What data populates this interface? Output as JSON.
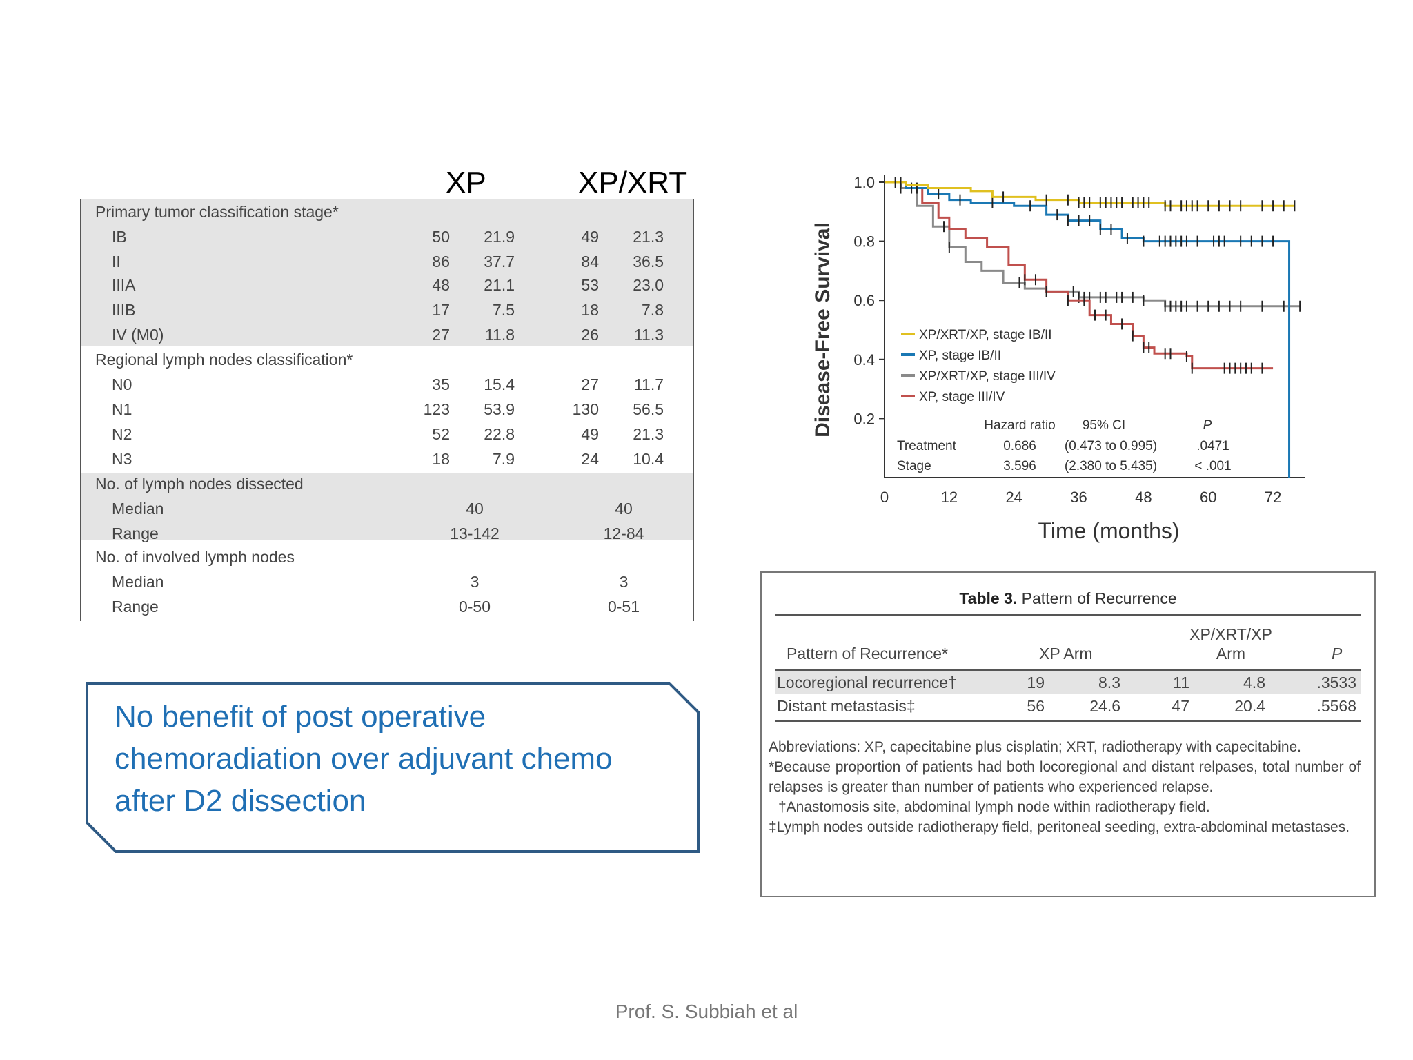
{
  "left_table": {
    "column_headers": [
      "XP",
      "XP/XRT"
    ],
    "sections": [
      {
        "title": "Primary tumor classification stage*",
        "rows": [
          {
            "label": "IB",
            "values": [
              "50",
              "21.9",
              "49",
              "21.3"
            ]
          },
          {
            "label": "II",
            "values": [
              "86",
              "37.7",
              "84",
              "36.5"
            ]
          },
          {
            "label": "IIIA",
            "values": [
              "48",
              "21.1",
              "53",
              "23.0"
            ]
          },
          {
            "label": "IIIB",
            "values": [
              "17",
              "7.5",
              "18",
              "7.8"
            ]
          },
          {
            "label": "IV (M0)",
            "values": [
              "27",
              "11.8",
              "26",
              "11.3"
            ]
          }
        ]
      },
      {
        "title": "Regional lymph nodes classification*",
        "rows": [
          {
            "label": "N0",
            "values": [
              "35",
              "15.4",
              "27",
              "11.7"
            ]
          },
          {
            "label": "N1",
            "values": [
              "123",
              "53.9",
              "130",
              "56.5"
            ]
          },
          {
            "label": "N2",
            "values": [
              "52",
              "22.8",
              "49",
              "21.3"
            ]
          },
          {
            "label": "N3",
            "values": [
              "18",
              "7.9",
              "24",
              "10.4"
            ]
          }
        ]
      },
      {
        "title": "No. of lymph nodes dissected",
        "rows": [
          {
            "label": "Median",
            "values": [
              "40",
              "40"
            ]
          },
          {
            "label": "Range",
            "values": [
              "13-142",
              "12-84"
            ]
          }
        ]
      },
      {
        "title": "No. of involved lymph nodes",
        "rows": [
          {
            "label": "Median",
            "values": [
              "3",
              "3"
            ]
          },
          {
            "label": "Range",
            "values": [
              "0-50",
              "0-51"
            ]
          }
        ]
      }
    ]
  },
  "callout": {
    "lines": [
      "No benefit of post operative",
      "chemoradiation over adjuvant chemo",
      "after D2 dissection"
    ]
  },
  "km_chart": {
    "type": "line",
    "ylabel": "Disease-Free Survival",
    "xlabel": "Time (months)",
    "x_ticks": [
      "0",
      "12",
      "24",
      "36",
      "48",
      "60",
      "72"
    ],
    "y_ticks": [
      "1.0",
      "0.8",
      "0.6",
      "0.4",
      "0.2"
    ],
    "xlim": [
      0,
      78
    ],
    "ylim": [
      0,
      1.0
    ],
    "colors": {
      "XP/XRT/XP, stage IB/II": "#e0c020",
      "XP, stage IB/II": "#1a78b4",
      "XP/XRT/XP, stage III/IV": "#8a8a8a",
      "XP, stage III/IV": "#c0504d"
    },
    "series": [
      {
        "name": "XP/XRT/XP, stage IB/II",
        "color": "#e0c020",
        "points": [
          [
            0,
            1.0
          ],
          [
            4,
            0.99
          ],
          [
            8,
            0.98
          ],
          [
            16,
            0.97
          ],
          [
            20,
            0.95
          ],
          [
            28,
            0.94
          ],
          [
            36,
            0.93
          ],
          [
            52,
            0.92
          ],
          [
            76,
            0.92
          ]
        ],
        "censor_x": [
          2,
          3,
          22,
          30,
          34,
          36,
          37,
          38,
          40,
          41,
          42,
          43,
          44,
          46,
          47,
          48,
          49,
          52,
          53,
          55,
          56,
          57,
          58,
          60,
          62,
          64,
          66,
          70,
          72,
          74,
          76
        ]
      },
      {
        "name": "XP, stage IB/II",
        "color": "#1a78b4",
        "points": [
          [
            0,
            1.0
          ],
          [
            4,
            0.98
          ],
          [
            8,
            0.96
          ],
          [
            12,
            0.94
          ],
          [
            16,
            0.93
          ],
          [
            24,
            0.92
          ],
          [
            30,
            0.89
          ],
          [
            34,
            0.87
          ],
          [
            40,
            0.84
          ],
          [
            44,
            0.81
          ],
          [
            48,
            0.8
          ],
          [
            75,
            0.8
          ],
          [
            75,
            0.0
          ]
        ],
        "censor_x": [
          3,
          5,
          6,
          10,
          14,
          20,
          27,
          32,
          34,
          36,
          38,
          40,
          42,
          45,
          48,
          51,
          52,
          53,
          54,
          55,
          56,
          58,
          61,
          62,
          63,
          66,
          68,
          70,
          72
        ]
      },
      {
        "name": "XP/XRT/XP, stage III/IV",
        "color": "#8a8a8a",
        "points": [
          [
            0,
            1.0
          ],
          [
            3,
            0.98
          ],
          [
            6,
            0.92
          ],
          [
            9,
            0.85
          ],
          [
            12,
            0.78
          ],
          [
            15,
            0.73
          ],
          [
            18,
            0.7
          ],
          [
            22,
            0.66
          ],
          [
            26,
            0.64
          ],
          [
            30,
            0.63
          ],
          [
            36,
            0.61
          ],
          [
            42,
            0.61
          ],
          [
            48,
            0.6
          ],
          [
            52,
            0.58
          ],
          [
            77,
            0.58
          ]
        ],
        "censor_x": [
          3,
          11,
          12,
          25,
          35,
          36,
          37,
          38,
          40,
          41,
          43,
          44,
          46,
          48,
          52,
          53,
          54,
          55,
          56,
          58,
          60,
          62,
          64,
          66,
          70,
          74,
          77
        ]
      },
      {
        "name": "XP, stage III/IV",
        "color": "#c0504d",
        "points": [
          [
            0,
            1.0
          ],
          [
            4,
            0.98
          ],
          [
            7,
            0.93
          ],
          [
            10,
            0.88
          ],
          [
            12,
            0.84
          ],
          [
            15,
            0.81
          ],
          [
            19,
            0.78
          ],
          [
            23,
            0.72
          ],
          [
            26,
            0.67
          ],
          [
            30,
            0.63
          ],
          [
            34,
            0.6
          ],
          [
            38,
            0.55
          ],
          [
            42,
            0.52
          ],
          [
            46,
            0.48
          ],
          [
            48,
            0.44
          ],
          [
            50,
            0.42
          ],
          [
            56,
            0.41
          ],
          [
            57,
            0.37
          ],
          [
            72,
            0.37
          ]
        ],
        "censor_x": [
          26,
          28,
          30,
          34,
          37,
          39,
          41,
          44,
          46,
          48,
          49,
          52,
          53,
          56,
          57,
          63,
          64,
          65,
          66,
          67,
          68,
          70
        ]
      }
    ],
    "stats": {
      "headers": [
        "Hazard ratio",
        "95% CI",
        "P"
      ],
      "rows": [
        {
          "label": "Treatment",
          "values": [
            "0.686",
            "(0.473 to 0.995)",
            ".0471"
          ]
        },
        {
          "label": "Stage",
          "values": [
            "3.596",
            "(2.380 to 5.435)",
            "< .001"
          ]
        }
      ]
    }
  },
  "table3": {
    "title_bold": "Table 3.",
    "title_rest": "Pattern of Recurrence",
    "headers": {
      "col1": "Pattern of Recurrence*",
      "col2": "XP Arm",
      "col3_line1": "XP/XRT/XP",
      "col3_line2": "Arm",
      "col4": "P"
    },
    "rows": [
      {
        "label": "Locoregional recurrence†",
        "values": [
          "19",
          "8.3",
          "11",
          "4.8",
          ".3533"
        ]
      },
      {
        "label": "Distant metastasis‡",
        "values": [
          "56",
          "24.6",
          "47",
          "20.4",
          ".5568"
        ]
      }
    ],
    "notes": [
      "Abbreviations: XP, capecitabine plus cisplatin; XRT, radiotherapy with capecitabine.",
      "*Because proportion of patients had both locoregional and distant relpases, total number of relapses is greater than number of patients who experienced relapse.",
      "†Anastomosis site, abdominal lymph node within radiotherapy field.",
      "‡Lymph nodes outside radiotherapy field, peritoneal seeding, extra-abdominal metastases."
    ]
  },
  "footer": {
    "text": "Prof. S. Subbiah et al"
  }
}
